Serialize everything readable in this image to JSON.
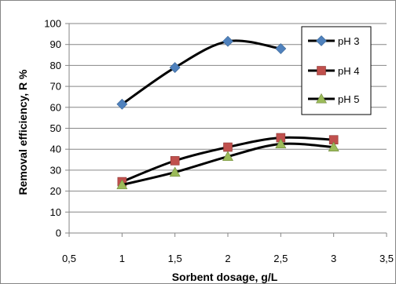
{
  "chart_data": {
    "type": "line",
    "xlabel": "Sorbent dosage, g/L",
    "ylabel": "Removal efficiency, R %",
    "xlim": [
      0.5,
      3.5
    ],
    "ylim": [
      0,
      100
    ],
    "x_ticks": [
      "0,5",
      "1",
      "1,5",
      "2",
      "2,5",
      "3",
      "3,5"
    ],
    "x_tick_values": [
      0.5,
      1,
      1.5,
      2,
      2.5,
      3,
      3.5
    ],
    "y_ticks": [
      "0",
      "10",
      "20",
      "30",
      "40",
      "50",
      "60",
      "70",
      "80",
      "90",
      "100"
    ],
    "y_tick_values": [
      0,
      10,
      20,
      30,
      40,
      50,
      60,
      70,
      80,
      90,
      100
    ],
    "grid": true,
    "smooth": true,
    "legend_position": "top-right",
    "series": [
      {
        "name": "pH 3",
        "marker": "diamond",
        "color": "#4F81BD",
        "x": [
          1,
          1.5,
          2,
          2.5
        ],
        "values": [
          61.5,
          79,
          91.5,
          88
        ]
      },
      {
        "name": "pH 4",
        "marker": "square",
        "color": "#C0504D",
        "x": [
          1,
          1.5,
          2,
          2.5,
          3
        ],
        "values": [
          24.5,
          34.5,
          41,
          45.5,
          44.5
        ]
      },
      {
        "name": "pH 5",
        "marker": "triangle",
        "color": "#9BBB59",
        "x": [
          1,
          1.5,
          2,
          2.5,
          3
        ],
        "values": [
          23,
          29,
          36.5,
          42.5,
          41
        ]
      }
    ]
  }
}
